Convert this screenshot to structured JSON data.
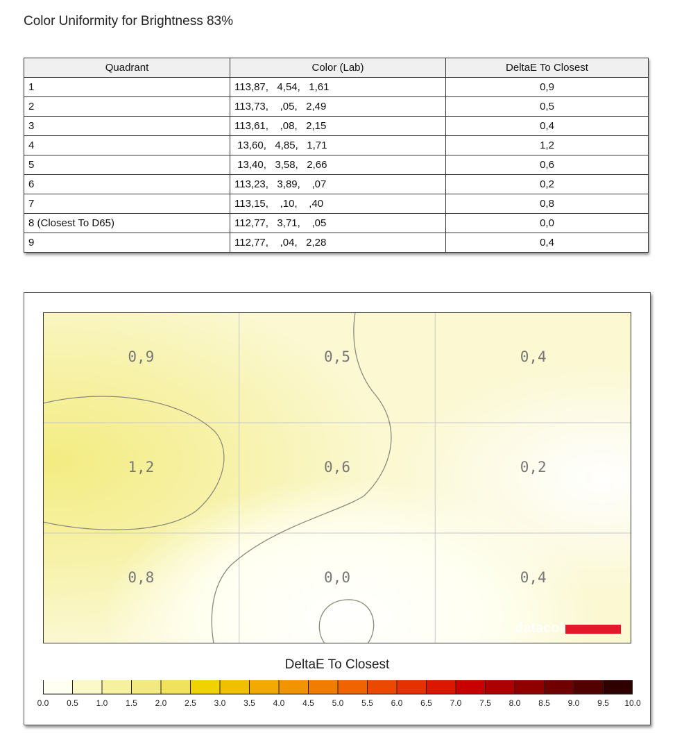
{
  "title": "Color Uniformity for Brightness 83%",
  "table": {
    "headers": [
      "Quadrant",
      "Color (Lab)",
      "DeltaE To Closest"
    ],
    "rows": [
      {
        "quadrant": "1",
        "lab": "113,87,   4,54,   1,61",
        "delta": "0,9"
      },
      {
        "quadrant": "2",
        "lab": "113,73,    ,05,   2,49",
        "delta": "0,5"
      },
      {
        "quadrant": "3",
        "lab": "113,61,    ,08,   2,15",
        "delta": "0,4"
      },
      {
        "quadrant": "4",
        "lab": " 13,60,   4,85,   1,71",
        "delta": "1,2"
      },
      {
        "quadrant": "5",
        "lab": " 13,40,   3,58,   2,66",
        "delta": "0,6"
      },
      {
        "quadrant": "6",
        "lab": "113,23,   3,89,    ,07",
        "delta": "0,2"
      },
      {
        "quadrant": "7",
        "lab": "113,15,    ,10,    ,40",
        "delta": "0,8"
      },
      {
        "quadrant": "8 (Closest To D65)",
        "lab": "112,77,   3,71,    ,05",
        "delta": "0,0"
      },
      {
        "quadrant": "9",
        "lab": "112,77,    ,04,   2,28",
        "delta": "0,4"
      }
    ]
  },
  "heatmap": {
    "cells": [
      {
        "label": "0,9",
        "value": 0.9
      },
      {
        "label": "0,5",
        "value": 0.5
      },
      {
        "label": "0,4",
        "value": 0.4
      },
      {
        "label": "1,2",
        "value": 1.2
      },
      {
        "label": "0,6",
        "value": 0.6
      },
      {
        "label": "0,2",
        "value": 0.2
      },
      {
        "label": "0,8",
        "value": 0.8
      },
      {
        "label": "0,0",
        "value": 0.0
      },
      {
        "label": "0,4",
        "value": 0.4
      }
    ],
    "watermark": "datacolor",
    "watermark_bar_color": "#e3182b"
  },
  "legend": {
    "title": "DeltaE To Closest",
    "ticks": [
      "0.0",
      "0.5",
      "1.0",
      "1.5",
      "2.0",
      "2.5",
      "3.0",
      "3.5",
      "4.0",
      "4.5",
      "5.0",
      "5.5",
      "6.0",
      "6.5",
      "7.0",
      "7.5",
      "8.0",
      "8.5",
      "9.0",
      "9.5",
      "10.0"
    ],
    "colors": [
      "#fffff2",
      "#fcf9c9",
      "#f6f19e",
      "#f2ea80",
      "#f1e25d",
      "#f0d200",
      "#f0bf00",
      "#f2aa00",
      "#f29400",
      "#f17d00",
      "#ef6300",
      "#ea4a00",
      "#e53100",
      "#dc1700",
      "#c80000",
      "#ad0000",
      "#8f0000",
      "#700000",
      "#520000",
      "#2f0000"
    ]
  }
}
